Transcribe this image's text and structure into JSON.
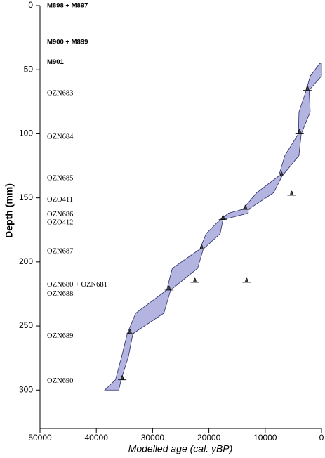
{
  "chart_data": {
    "type": "age-depth",
    "xlabel": "Modelled age (cal. γBP)",
    "ylabel": "Depth (mm)",
    "xlim": [
      50000,
      0
    ],
    "xticks": [
      50000,
      40000,
      30000,
      20000,
      10000,
      0
    ],
    "ylim": [
      0,
      330
    ],
    "yticks": [
      0,
      50,
      100,
      150,
      200,
      250,
      300
    ],
    "model": {
      "color": "#b3b5e0",
      "depth": [
        45,
        55,
        66,
        83,
        100,
        117,
        133,
        146,
        159,
        162,
        167,
        178,
        190,
        205,
        222,
        240,
        256,
        274,
        292,
        300
      ],
      "older": [
        300,
        2000,
        2700,
        4000,
        4100,
        6500,
        7600,
        11500,
        14000,
        16500,
        18000,
        20500,
        21600,
        26500,
        27500,
        33000,
        34500,
        35500,
        36600,
        38500
      ],
      "younger": [
        0,
        0,
        2200,
        2000,
        3600,
        4000,
        7000,
        8500,
        13000,
        13000,
        17500,
        18000,
        21000,
        22000,
        26800,
        28000,
        33500,
        34300,
        35600,
        36000
      ]
    },
    "dates": {
      "x": [
        2500,
        3900,
        7100,
        13500,
        17500,
        21300,
        27100,
        34000,
        35400,
        5300,
        22500,
        13300
      ],
      "depth": [
        66,
        100,
        133,
        159,
        167,
        190,
        222,
        256,
        292,
        148,
        216,
        216
      ]
    },
    "labels": [
      {
        "text": "M898 + M897",
        "depth": 0,
        "style": "bold"
      },
      {
        "text": "M900 + M899",
        "depth": 28.5,
        "style": "bold"
      },
      {
        "text": "M901",
        "depth": 44,
        "style": "bold"
      },
      {
        "text": "OZN683",
        "depth": 68.5,
        "style": "normal"
      },
      {
        "text": "OZN684",
        "depth": 102.5,
        "style": "normal"
      },
      {
        "text": "OZN685",
        "depth": 135,
        "style": "normal"
      },
      {
        "text": "OZO411",
        "depth": 151.5,
        "style": "normal"
      },
      {
        "text": "OZN686",
        "depth": 163,
        "style": "normal"
      },
      {
        "text": "OZO412",
        "depth": 169.5,
        "style": "normal"
      },
      {
        "text": "OZN687",
        "depth": 192,
        "style": "normal"
      },
      {
        "text": "OZN680 + OZN681",
        "depth": 218,
        "style": "normal"
      },
      {
        "text": "OZN688",
        "depth": 225,
        "style": "normal"
      },
      {
        "text": "OZN689",
        "depth": 258,
        "style": "normal"
      },
      {
        "text": "OZN690",
        "depth": 293,
        "style": "normal"
      }
    ]
  }
}
